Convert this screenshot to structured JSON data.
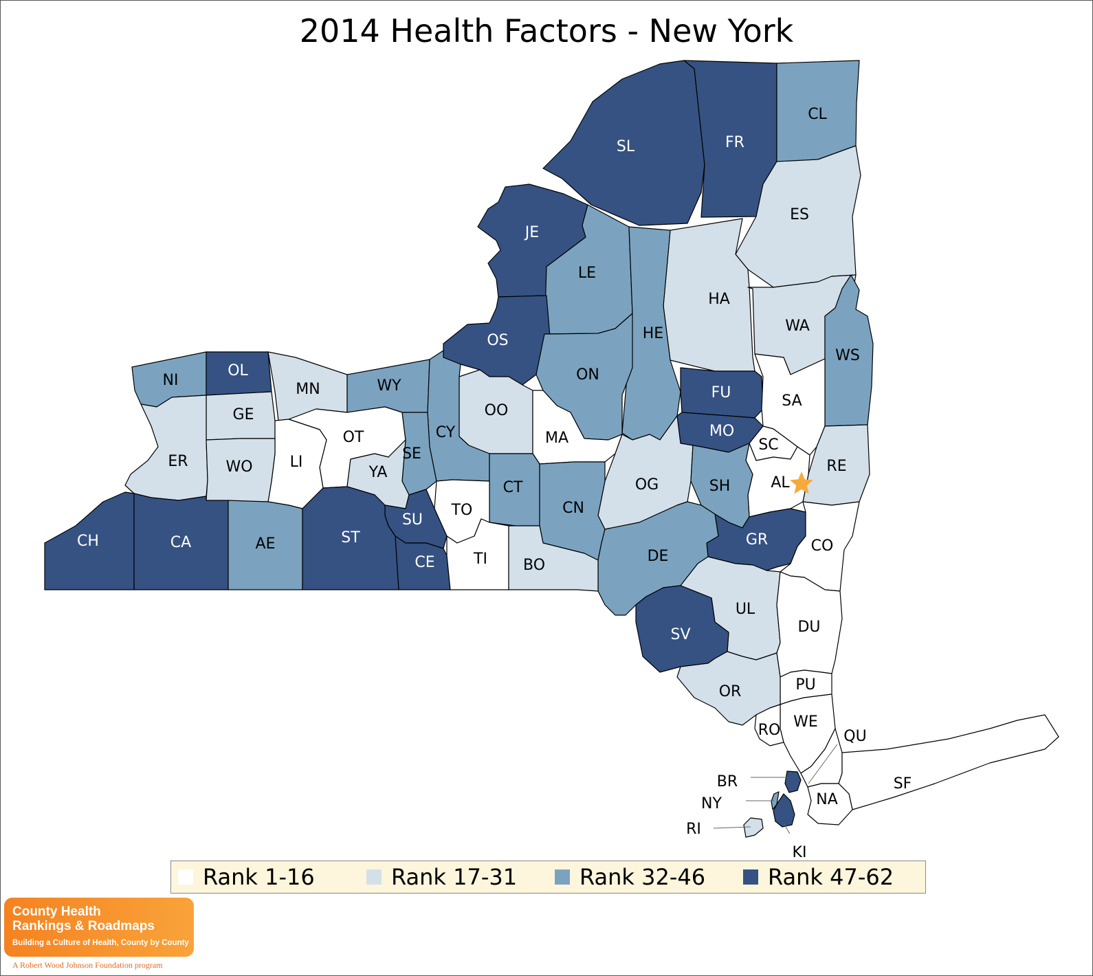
{
  "title": "2014 Health Factors - New York",
  "legend": [
    {
      "label": "Rank 1-16",
      "color": "#ffffff"
    },
    {
      "label": "Rank 17-31",
      "color": "#d3e0ea"
    },
    {
      "label": "Rank 32-46",
      "color": "#7ba3c0"
    },
    {
      "label": "Rank 47-62",
      "color": "#355282"
    }
  ],
  "capital_marker": {
    "county": "AL",
    "color": "#f7a93b",
    "icon": "star-icon"
  },
  "counties": [
    {
      "abbr": "SL",
      "rank_group": 4
    },
    {
      "abbr": "FR",
      "rank_group": 4
    },
    {
      "abbr": "CL",
      "rank_group": 3
    },
    {
      "abbr": "JE",
      "rank_group": 4
    },
    {
      "abbr": "LE",
      "rank_group": 3
    },
    {
      "abbr": "ES",
      "rank_group": 2
    },
    {
      "abbr": "HA",
      "rank_group": 2
    },
    {
      "abbr": "HE",
      "rank_group": 3
    },
    {
      "abbr": "WA",
      "rank_group": 2
    },
    {
      "abbr": "OS",
      "rank_group": 4
    },
    {
      "abbr": "ON",
      "rank_group": 3
    },
    {
      "abbr": "WS",
      "rank_group": 3
    },
    {
      "abbr": "NI",
      "rank_group": 3
    },
    {
      "abbr": "OL",
      "rank_group": 4
    },
    {
      "abbr": "MN",
      "rank_group": 2
    },
    {
      "abbr": "WY",
      "rank_group": 3
    },
    {
      "abbr": "FU",
      "rank_group": 4
    },
    {
      "abbr": "SA",
      "rank_group": 1
    },
    {
      "abbr": "GE",
      "rank_group": 2
    },
    {
      "abbr": "OO",
      "rank_group": 2
    },
    {
      "abbr": "CY",
      "rank_group": 3
    },
    {
      "abbr": "OT",
      "rank_group": 1
    },
    {
      "abbr": "MA",
      "rank_group": 1
    },
    {
      "abbr": "MO",
      "rank_group": 4
    },
    {
      "abbr": "SC",
      "rank_group": 1
    },
    {
      "abbr": "ER",
      "rank_group": 2
    },
    {
      "abbr": "LI",
      "rank_group": 1
    },
    {
      "abbr": "SE",
      "rank_group": 3
    },
    {
      "abbr": "RE",
      "rank_group": 2
    },
    {
      "abbr": "WO",
      "rank_group": 2
    },
    {
      "abbr": "YA",
      "rank_group": 2
    },
    {
      "abbr": "OG",
      "rank_group": 2
    },
    {
      "abbr": "AL",
      "rank_group": 1
    },
    {
      "abbr": "SH",
      "rank_group": 3
    },
    {
      "abbr": "CT",
      "rank_group": 3
    },
    {
      "abbr": "CN",
      "rank_group": 3
    },
    {
      "abbr": "TO",
      "rank_group": 1
    },
    {
      "abbr": "SU",
      "rank_group": 4
    },
    {
      "abbr": "CH",
      "rank_group": 4
    },
    {
      "abbr": "CA",
      "rank_group": 4
    },
    {
      "abbr": "AE",
      "rank_group": 3
    },
    {
      "abbr": "ST",
      "rank_group": 4
    },
    {
      "abbr": "GR",
      "rank_group": 4
    },
    {
      "abbr": "CO",
      "rank_group": 1
    },
    {
      "abbr": "DE",
      "rank_group": 3
    },
    {
      "abbr": "CE",
      "rank_group": 4
    },
    {
      "abbr": "TI",
      "rank_group": 1
    },
    {
      "abbr": "BO",
      "rank_group": 2
    },
    {
      "abbr": "UL",
      "rank_group": 2
    },
    {
      "abbr": "DU",
      "rank_group": 1
    },
    {
      "abbr": "SV",
      "rank_group": 4
    },
    {
      "abbr": "PU",
      "rank_group": 1
    },
    {
      "abbr": "OR",
      "rank_group": 2
    },
    {
      "abbr": "WE",
      "rank_group": 1
    },
    {
      "abbr": "RO",
      "rank_group": 1
    },
    {
      "abbr": "QU",
      "rank_group": 1
    },
    {
      "abbr": "SF",
      "rank_group": 1
    },
    {
      "abbr": "BR",
      "rank_group": 4
    },
    {
      "abbr": "NY",
      "rank_group": 3
    },
    {
      "abbr": "NA",
      "rank_group": 1
    },
    {
      "abbr": "RI",
      "rank_group": 2
    },
    {
      "abbr": "KI",
      "rank_group": 4
    }
  ],
  "logo": {
    "line1": "County Health",
    "line2": "Rankings & Roadmaps",
    "tagline": "Building a Culture of Health, County by County",
    "sub": "A Robert Wood Johnson Foundation program"
  }
}
